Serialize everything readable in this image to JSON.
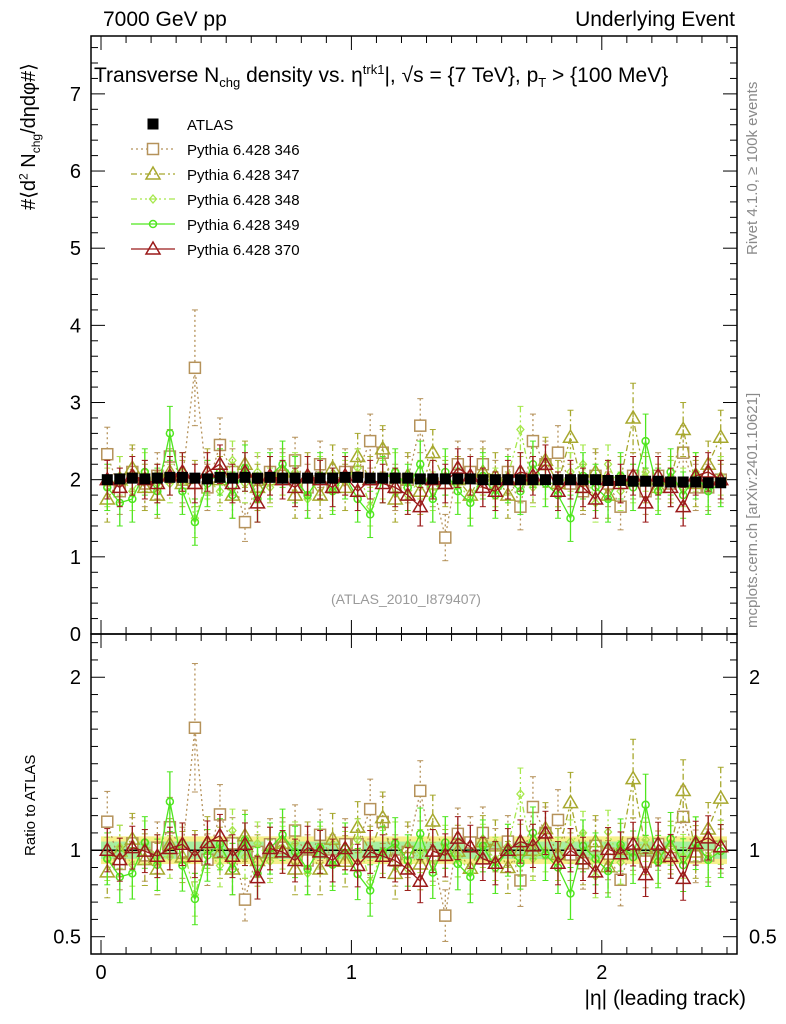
{
  "header": {
    "left_title": "7000 GeV pp",
    "right_title": "Underlying Event"
  },
  "side_text": {
    "rivet": "Rivet 4.1.0, ≥ 100k events",
    "site": "mcplots.cern.ch [arXiv:2401.10621]"
  },
  "colors": {
    "atlas": "#000000",
    "p346": "#b5925a",
    "p347": "#a7a82e",
    "p348": "#a6e84c",
    "p349": "#4fe61f",
    "p370": "#9b1a1a",
    "band_yellow": "#f7f08c",
    "band_green": "#a8eea0"
  },
  "chart_data": [
    {
      "panel": "main",
      "type": "scatter",
      "title_main": "Transverse N",
      "title_sub1": "chg",
      "title_mid": " density vs. η",
      "title_sup": "trk1",
      "title_rest": "|, √s = {7 TeV}, p",
      "title_sub2": "T",
      "title_end": " > {100 MeV}",
      "ylabel": "#⟨d² N_chg/dηdφ#⟩",
      "ylabel_pre": "#⟨d",
      "ylabel_sup": "2",
      "ylabel_mid": " N",
      "ylabel_sub": "chg",
      "ylabel_post": "/dηdφ#⟩",
      "watermark": "(ATLAS_2010_I879407)",
      "ylim": [
        0,
        7.75
      ],
      "yticks": [
        0,
        1,
        2,
        3,
        4,
        5,
        6,
        7
      ],
      "ytick_labels": [
        "0",
        "1",
        "2",
        "3",
        "4",
        "5",
        "6",
        "7"
      ],
      "x": [
        0.025,
        0.075,
        0.125,
        0.175,
        0.225,
        0.275,
        0.325,
        0.375,
        0.425,
        0.475,
        0.525,
        0.575,
        0.625,
        0.675,
        0.725,
        0.775,
        0.825,
        0.875,
        0.925,
        0.975,
        1.025,
        1.075,
        1.125,
        1.175,
        1.225,
        1.275,
        1.325,
        1.375,
        1.425,
        1.475,
        1.525,
        1.575,
        1.625,
        1.675,
        1.725,
        1.775,
        1.825,
        1.875,
        1.925,
        1.975,
        2.025,
        2.075,
        2.125,
        2.175,
        2.225,
        2.275,
        2.325,
        2.375,
        2.425,
        2.475
      ],
      "series": [
        {
          "name": "ATLAS",
          "key": "atlas",
          "values": [
            2.0,
            2.01,
            2.02,
            2.01,
            2.02,
            2.03,
            2.03,
            2.02,
            2.01,
            2.03,
            2.02,
            2.03,
            2.02,
            2.03,
            2.02,
            2.02,
            2.02,
            2.02,
            2.02,
            2.03,
            2.03,
            2.02,
            2.02,
            2.02,
            2.02,
            2.01,
            2.01,
            2.01,
            2.01,
            2.01,
            2.0,
            2.0,
            2.0,
            2.0,
            2.0,
            2.0,
            2.0,
            2.0,
            2.0,
            2.0,
            1.99,
            1.99,
            1.98,
            1.98,
            1.98,
            1.97,
            1.97,
            1.97,
            1.96,
            1.96
          ],
          "errors": [
            0.05,
            0.05,
            0.05,
            0.05,
            0.05,
            0.05,
            0.05,
            0.05,
            0.05,
            0.05,
            0.05,
            0.05,
            0.05,
            0.05,
            0.05,
            0.05,
            0.05,
            0.05,
            0.05,
            0.05,
            0.05,
            0.05,
            0.05,
            0.05,
            0.05,
            0.05,
            0.05,
            0.05,
            0.05,
            0.05,
            0.05,
            0.05,
            0.05,
            0.05,
            0.05,
            0.05,
            0.05,
            0.05,
            0.05,
            0.05,
            0.05,
            0.05,
            0.05,
            0.05,
            0.05,
            0.05,
            0.05,
            0.05,
            0.05,
            0.05
          ]
        },
        {
          "name": "Pythia 6.428 346",
          "key": "p346",
          "values": [
            2.33,
            1.85,
            2.1,
            1.95,
            2.05,
            2.3,
            2.0,
            3.45,
            1.9,
            2.45,
            2.1,
            1.45,
            2.0,
            2.1,
            2.05,
            2.25,
            1.9,
            2.2,
            1.9,
            2.1,
            2.1,
            2.5,
            2.35,
            1.9,
            2.0,
            2.7,
            1.95,
            1.25,
            2.2,
            2.1,
            2.2,
            1.95,
            2.1,
            1.65,
            2.5,
            2.2,
            2.35,
            1.95,
            1.85,
            2.05,
            1.95,
            1.65,
            2.05,
            1.85,
            2.05,
            1.95,
            2.35,
            1.9,
            1.9,
            2.0
          ],
          "errors": [
            0.35,
            0.3,
            0.3,
            0.3,
            0.3,
            0.35,
            0.3,
            0.75,
            0.3,
            0.35,
            0.3,
            0.25,
            0.3,
            0.3,
            0.3,
            0.3,
            0.3,
            0.3,
            0.3,
            0.3,
            0.3,
            0.35,
            0.3,
            0.3,
            0.3,
            0.35,
            0.3,
            0.3,
            0.3,
            0.3,
            0.3,
            0.3,
            0.3,
            0.3,
            0.35,
            0.3,
            0.35,
            0.3,
            0.3,
            0.3,
            0.3,
            0.3,
            0.3,
            0.3,
            0.3,
            0.3,
            0.35,
            0.3,
            0.3,
            0.3
          ]
        },
        {
          "name": "Pythia 6.428 347",
          "key": "p347",
          "values": [
            1.75,
            2.0,
            2.15,
            1.9,
            1.8,
            2.1,
            1.95,
            1.95,
            2.1,
            2.0,
            1.8,
            2.2,
            1.9,
            2.0,
            2.1,
            1.8,
            2.05,
            1.8,
            2.15,
            1.9,
            2.3,
            2.0,
            2.4,
            1.75,
            2.05,
            1.85,
            2.35,
            1.95,
            2.0,
            1.8,
            2.1,
            2.05,
            1.8,
            2.0,
            2.0,
            2.25,
            1.95,
            2.55,
            1.9,
            2.1,
            1.8,
            2.0,
            2.8,
            2.0,
            1.9,
            2.0,
            2.65,
            1.95,
            2.2,
            2.55
          ],
          "errors": [
            0.3,
            0.3,
            0.3,
            0.3,
            0.3,
            0.3,
            0.3,
            0.3,
            0.3,
            0.3,
            0.3,
            0.3,
            0.3,
            0.3,
            0.3,
            0.3,
            0.3,
            0.3,
            0.3,
            0.3,
            0.3,
            0.3,
            0.3,
            0.3,
            0.3,
            0.3,
            0.3,
            0.3,
            0.3,
            0.3,
            0.3,
            0.3,
            0.3,
            0.3,
            0.3,
            0.3,
            0.3,
            0.35,
            0.3,
            0.3,
            0.3,
            0.3,
            0.45,
            0.3,
            0.3,
            0.3,
            0.35,
            0.3,
            0.3,
            0.35
          ]
        },
        {
          "name": "Pythia 6.428 348",
          "key": "p348",
          "values": [
            1.9,
            2.05,
            1.85,
            2.1,
            1.95,
            1.95,
            2.1,
            1.5,
            2.0,
            1.85,
            2.25,
            1.95,
            2.1,
            1.9,
            2.05,
            2.1,
            1.75,
            2.05,
            1.85,
            2.0,
            2.15,
            1.65,
            2.0,
            2.1,
            1.8,
            2.0,
            1.85,
            2.05,
            1.95,
            1.75,
            2.05,
            1.9,
            2.05,
            2.65,
            1.9,
            2.0,
            1.9,
            2.1,
            2.2,
            1.7,
            2.2,
            1.85,
            1.95,
            2.1,
            1.85,
            2.0,
            1.9,
            2.1,
            1.9,
            2.05
          ],
          "errors": [
            0.25,
            0.25,
            0.25,
            0.25,
            0.25,
            0.25,
            0.25,
            0.25,
            0.25,
            0.25,
            0.25,
            0.25,
            0.25,
            0.25,
            0.25,
            0.25,
            0.25,
            0.25,
            0.25,
            0.25,
            0.25,
            0.25,
            0.25,
            0.25,
            0.25,
            0.25,
            0.25,
            0.25,
            0.25,
            0.25,
            0.25,
            0.25,
            0.25,
            0.3,
            0.25,
            0.25,
            0.25,
            0.25,
            0.25,
            0.25,
            0.25,
            0.25,
            0.25,
            0.25,
            0.25,
            0.25,
            0.25,
            0.25,
            0.25,
            0.25
          ]
        },
        {
          "name": "Pythia 6.428 349",
          "key": "p349",
          "values": [
            1.9,
            1.7,
            1.75,
            2.1,
            1.85,
            2.6,
            1.85,
            1.45,
            1.95,
            2.1,
            1.8,
            2.15,
            1.75,
            2.05,
            2.2,
            2.0,
            1.8,
            2.05,
            1.85,
            2.05,
            1.75,
            1.55,
            2.0,
            2.1,
            1.9,
            2.2,
            1.75,
            2.1,
            1.85,
            1.7,
            2.05,
            1.8,
            2.0,
            1.85,
            2.2,
            1.95,
            1.8,
            1.5,
            2.05,
            1.9,
            1.75,
            2.05,
            1.9,
            2.5,
            1.85,
            2.1,
            1.8,
            2.05,
            1.85,
            1.95
          ],
          "errors": [
            0.3,
            0.3,
            0.3,
            0.3,
            0.3,
            0.35,
            0.3,
            0.3,
            0.3,
            0.3,
            0.3,
            0.3,
            0.3,
            0.3,
            0.3,
            0.3,
            0.3,
            0.3,
            0.3,
            0.3,
            0.3,
            0.3,
            0.3,
            0.3,
            0.3,
            0.3,
            0.3,
            0.3,
            0.3,
            0.3,
            0.3,
            0.3,
            0.3,
            0.3,
            0.3,
            0.3,
            0.3,
            0.3,
            0.3,
            0.3,
            0.3,
            0.3,
            0.3,
            0.35,
            0.3,
            0.3,
            0.3,
            0.3,
            0.3,
            0.3
          ]
        },
        {
          "name": "Pythia 6.428 370",
          "key": "p370",
          "values": [
            2.0,
            1.9,
            2.05,
            2.0,
            1.95,
            2.05,
            2.1,
            1.95,
            2.1,
            2.2,
            1.95,
            2.1,
            1.7,
            2.05,
            2.0,
            1.9,
            2.05,
            2.0,
            1.9,
            2.05,
            1.85,
            2.0,
            1.95,
            1.9,
            1.8,
            1.65,
            2.0,
            1.95,
            2.15,
            2.05,
            1.9,
            1.85,
            2.0,
            2.1,
            2.05,
            2.2,
            1.85,
            2.0,
            1.9,
            1.75,
            2.0,
            1.95,
            2.05,
            1.7,
            2.05,
            1.9,
            1.65,
            2.05,
            2.1,
            2.0
          ],
          "errors": [
            0.25,
            0.25,
            0.25,
            0.25,
            0.25,
            0.25,
            0.25,
            0.25,
            0.25,
            0.25,
            0.25,
            0.25,
            0.25,
            0.25,
            0.25,
            0.25,
            0.25,
            0.25,
            0.25,
            0.25,
            0.25,
            0.25,
            0.25,
            0.25,
            0.25,
            0.25,
            0.25,
            0.25,
            0.25,
            0.25,
            0.25,
            0.25,
            0.25,
            0.25,
            0.25,
            0.25,
            0.25,
            0.25,
            0.25,
            0.25,
            0.25,
            0.25,
            0.25,
            0.25,
            0.25,
            0.25,
            0.25,
            0.25,
            0.25,
            0.25
          ]
        }
      ],
      "legend": [
        "ATLAS",
        "Pythia 6.428 346",
        "Pythia 6.428 347",
        "Pythia 6.428 348",
        "Pythia 6.428 349",
        "Pythia 6.428 370"
      ],
      "legend_position": "top-left"
    },
    {
      "panel": "ratio",
      "type": "scatter",
      "ylabel": "Ratio to ATLAS",
      "xlabel": "|η| (leading track)",
      "ylim": [
        0.4,
        2.25
      ],
      "yticks": [
        0.5,
        1,
        2
      ],
      "ytick_labels": [
        "0.5",
        "1",
        "2"
      ],
      "xlim": [
        -0.04,
        2.54
      ],
      "xticks": [
        0,
        1,
        2
      ],
      "xtick_labels": [
        "0",
        "1",
        "2"
      ],
      "band_yellow_halfwidth": 0.08,
      "band_green_halfwidth": 0.05,
      "reference": 1
    }
  ]
}
